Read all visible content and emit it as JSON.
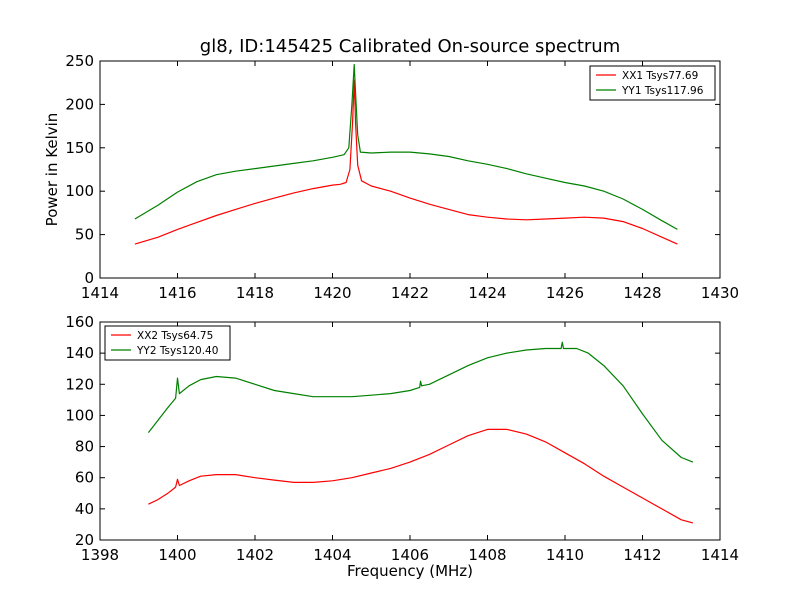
{
  "title": "gl8, ID:145425 Calibrated On-source spectrum",
  "chart_data": [
    {
      "type": "line",
      "ylabel": "Power in Kelvin",
      "xlabel": "",
      "xlim": [
        1414,
        1430
      ],
      "ylim": [
        0,
        250
      ],
      "xticks": [
        "1414",
        "1416",
        "1418",
        "1420",
        "1422",
        "1424",
        "1426",
        "1428",
        "1430"
      ],
      "yticks": [
        "0",
        "50",
        "100",
        "150",
        "200",
        "250"
      ],
      "grid": false,
      "legend_position": "top-right",
      "series": [
        {
          "name": "XX1 Tsys77.69",
          "color": "#ff0000",
          "points": [
            [
              1414.9,
              39
            ],
            [
              1415.5,
              47
            ],
            [
              1416,
              56
            ],
            [
              1416.5,
              64
            ],
            [
              1417,
              72
            ],
            [
              1417.5,
              79
            ],
            [
              1418,
              86
            ],
            [
              1418.5,
              92
            ],
            [
              1419,
              98
            ],
            [
              1419.5,
              103
            ],
            [
              1420,
              107
            ],
            [
              1420.2,
              108
            ],
            [
              1420.35,
              110
            ],
            [
              1420.45,
              125
            ],
            [
              1420.52,
              180
            ],
            [
              1420.56,
              228
            ],
            [
              1420.6,
              175
            ],
            [
              1420.65,
              130
            ],
            [
              1420.75,
              112
            ],
            [
              1421,
              106
            ],
            [
              1421.5,
              100
            ],
            [
              1422,
              92
            ],
            [
              1422.5,
              85
            ],
            [
              1423,
              79
            ],
            [
              1423.5,
              73
            ],
            [
              1424,
              70
            ],
            [
              1424.5,
              68
            ],
            [
              1425,
              67
            ],
            [
              1425.5,
              68
            ],
            [
              1426,
              69
            ],
            [
              1426.5,
              70
            ],
            [
              1427,
              69
            ],
            [
              1427.5,
              65
            ],
            [
              1428,
              57
            ],
            [
              1428.5,
              47
            ],
            [
              1428.9,
              39
            ]
          ]
        },
        {
          "name": "YY1 Tsys117.96",
          "color": "#008000",
          "points": [
            [
              1414.9,
              68
            ],
            [
              1415.5,
              84
            ],
            [
              1416,
              99
            ],
            [
              1416.5,
              111
            ],
            [
              1417,
              119
            ],
            [
              1417.5,
              123
            ],
            [
              1418,
              126
            ],
            [
              1418.5,
              129
            ],
            [
              1419,
              132
            ],
            [
              1419.5,
              135
            ],
            [
              1420,
              139
            ],
            [
              1420.3,
              142
            ],
            [
              1420.42,
              150
            ],
            [
              1420.5,
              200
            ],
            [
              1420.56,
              246
            ],
            [
              1420.6,
              210
            ],
            [
              1420.65,
              165
            ],
            [
              1420.72,
              145
            ],
            [
              1421,
              144
            ],
            [
              1421.5,
              145
            ],
            [
              1422,
              145
            ],
            [
              1422.5,
              143
            ],
            [
              1423,
              140
            ],
            [
              1423.5,
              135
            ],
            [
              1424,
              131
            ],
            [
              1424.5,
              126
            ],
            [
              1425,
              120
            ],
            [
              1425.5,
              115
            ],
            [
              1426,
              110
            ],
            [
              1426.5,
              106
            ],
            [
              1427,
              100
            ],
            [
              1427.5,
              91
            ],
            [
              1428,
              79
            ],
            [
              1428.5,
              66
            ],
            [
              1428.9,
              56
            ]
          ]
        }
      ]
    },
    {
      "type": "line",
      "ylabel": "",
      "xlabel": "Frequency (MHz)",
      "xlim": [
        1398,
        1414
      ],
      "ylim": [
        20,
        160
      ],
      "xticks": [
        "1398",
        "1400",
        "1402",
        "1404",
        "1406",
        "1408",
        "1410",
        "1412",
        "1414"
      ],
      "yticks": [
        "20",
        "40",
        "60",
        "80",
        "100",
        "120",
        "140",
        "160"
      ],
      "grid": false,
      "legend_position": "top-left",
      "series": [
        {
          "name": "XX2 Tsys64.75",
          "color": "#ff0000",
          "points": [
            [
              1399.25,
              43
            ],
            [
              1399.5,
              46
            ],
            [
              1399.75,
              50
            ],
            [
              1399.95,
              54
            ],
            [
              1400,
              59
            ],
            [
              1400.05,
              55
            ],
            [
              1400.3,
              58
            ],
            [
              1400.6,
              61
            ],
            [
              1401,
              62
            ],
            [
              1401.5,
              62
            ],
            [
              1402,
              60
            ],
            [
              1402.5,
              58.5
            ],
            [
              1403,
              57
            ],
            [
              1403.5,
              57
            ],
            [
              1404,
              58
            ],
            [
              1404.5,
              60
            ],
            [
              1405,
              63
            ],
            [
              1405.5,
              66
            ],
            [
              1406,
              70
            ],
            [
              1406.5,
              75
            ],
            [
              1407,
              81
            ],
            [
              1407.5,
              87
            ],
            [
              1408,
              91
            ],
            [
              1408.5,
              91
            ],
            [
              1409,
              88
            ],
            [
              1409.5,
              83
            ],
            [
              1410,
              76
            ],
            [
              1410.5,
              69
            ],
            [
              1411,
              61
            ],
            [
              1411.5,
              54
            ],
            [
              1412,
              47
            ],
            [
              1412.5,
              40
            ],
            [
              1413,
              33
            ],
            [
              1413.3,
              31
            ]
          ]
        },
        {
          "name": "YY2 Tsys120.40",
          "color": "#008000",
          "points": [
            [
              1399.25,
              89
            ],
            [
              1399.5,
              97
            ],
            [
              1399.75,
              105
            ],
            [
              1399.95,
              111
            ],
            [
              1400,
              124
            ],
            [
              1400.05,
              114
            ],
            [
              1400.3,
              119
            ],
            [
              1400.6,
              123
            ],
            [
              1401,
              125
            ],
            [
              1401.5,
              124
            ],
            [
              1402,
              120
            ],
            [
              1402.5,
              116
            ],
            [
              1403,
              114
            ],
            [
              1403.5,
              112
            ],
            [
              1404,
              112
            ],
            [
              1404.5,
              112
            ],
            [
              1405,
              113
            ],
            [
              1405.5,
              114
            ],
            [
              1406,
              116
            ],
            [
              1406.25,
              118
            ],
            [
              1406.27,
              122
            ],
            [
              1406.3,
              119
            ],
            [
              1406.5,
              120
            ],
            [
              1407,
              126
            ],
            [
              1407.5,
              132
            ],
            [
              1408,
              137
            ],
            [
              1408.5,
              140
            ],
            [
              1409,
              142
            ],
            [
              1409.5,
              143
            ],
            [
              1409.9,
              143
            ],
            [
              1409.93,
              147
            ],
            [
              1409.96,
              143
            ],
            [
              1410.3,
              143
            ],
            [
              1410.6,
              140
            ],
            [
              1411,
              132
            ],
            [
              1411.5,
              119
            ],
            [
              1412,
              101
            ],
            [
              1412.5,
              84
            ],
            [
              1413,
              73
            ],
            [
              1413.3,
              70
            ]
          ]
        }
      ]
    }
  ]
}
